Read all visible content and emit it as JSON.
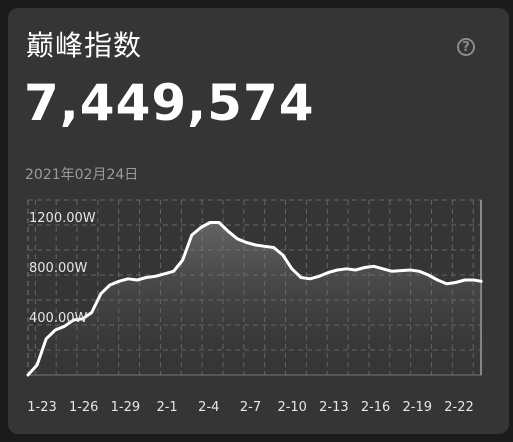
{
  "card": {
    "title": "巅峰指数",
    "help_glyph": "?",
    "value": "7,449,574",
    "date": "2021年02月24日"
  },
  "icons": {
    "help": "question-circle-icon"
  },
  "colors": {
    "background": "#1b1b1b",
    "card": "#353535",
    "line": "#ffffff",
    "text_secondary": "#9a9a9a",
    "grid": "#6a6a6a"
  },
  "chart_data": {
    "type": "area",
    "title": "",
    "xlabel": "",
    "ylabel": "",
    "ylim": [
      0,
      1400
    ],
    "y_ticks": [
      400,
      800,
      1200
    ],
    "y_tick_labels": [
      "400.00W",
      "800.00W",
      "1200.00W"
    ],
    "x_tick_labels": [
      "1-23",
      "1-26",
      "1-29",
      "2-1",
      "2-4",
      "2-7",
      "2-10",
      "2-13",
      "2-16",
      "2-19",
      "2-22"
    ],
    "grid": true,
    "series": [
      {
        "values": [
          [
            0,
            0
          ],
          [
            0.5,
            80
          ],
          [
            1,
            290
          ],
          [
            1.5,
            360
          ],
          [
            2,
            390
          ],
          [
            2.5,
            440
          ],
          [
            3,
            450
          ],
          [
            3.5,
            500
          ],
          [
            4,
            650
          ],
          [
            4.5,
            720
          ],
          [
            5,
            750
          ],
          [
            5.5,
            770
          ],
          [
            6,
            760
          ],
          [
            6.5,
            780
          ],
          [
            7,
            790
          ],
          [
            7.5,
            810
          ],
          [
            8,
            830
          ],
          [
            8.5,
            920
          ],
          [
            9,
            1120
          ],
          [
            9.5,
            1180
          ],
          [
            10,
            1220
          ],
          [
            10.5,
            1220
          ],
          [
            11,
            1150
          ],
          [
            11.5,
            1090
          ],
          [
            12,
            1060
          ],
          [
            12.5,
            1040
          ],
          [
            13,
            1030
          ],
          [
            13.5,
            1020
          ],
          [
            14,
            960
          ],
          [
            14.5,
            850
          ],
          [
            15,
            780
          ],
          [
            15.5,
            770
          ],
          [
            16,
            790
          ],
          [
            16.5,
            820
          ],
          [
            17,
            840
          ],
          [
            17.5,
            850
          ],
          [
            18,
            840
          ],
          [
            18.5,
            860
          ],
          [
            19,
            870
          ],
          [
            19.5,
            850
          ],
          [
            20,
            830
          ],
          [
            20.5,
            835
          ],
          [
            21,
            840
          ],
          [
            21.5,
            830
          ],
          [
            22,
            800
          ],
          [
            22.5,
            760
          ],
          [
            23,
            730
          ],
          [
            23.5,
            740
          ],
          [
            24,
            760
          ],
          [
            24.5,
            760
          ],
          [
            24.9,
            750
          ]
        ]
      }
    ]
  }
}
